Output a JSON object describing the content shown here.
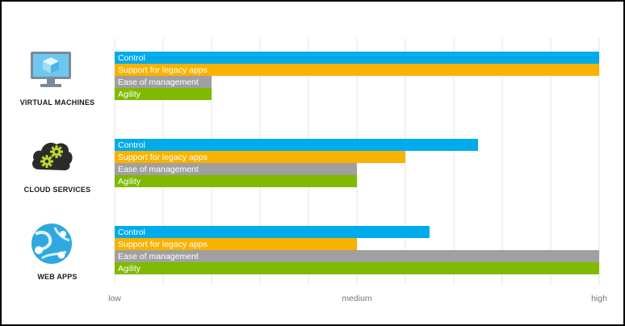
{
  "chart_data": {
    "type": "bar",
    "orientation": "horizontal",
    "x_ticks": [
      "low",
      "medium",
      "high"
    ],
    "xlim": [
      0,
      10
    ],
    "grid": true,
    "groups": [
      {
        "name": "VIRTUAL MACHINES",
        "icon": "virtual-machine-monitor-icon",
        "bars": [
          {
            "label": "Control",
            "value": 10,
            "color": "#00abec"
          },
          {
            "label": "Support for legacy apps",
            "value": 10,
            "color": "#fab200"
          },
          {
            "label": "Ease of management",
            "value": 2,
            "color": "#a0a0a0"
          },
          {
            "label": "Agility",
            "value": 2,
            "color": "#7fba00"
          }
        ]
      },
      {
        "name": "CLOUD SERVICES",
        "icon": "cloud-gears-icon",
        "bars": [
          {
            "label": "Control",
            "value": 7.5,
            "color": "#00abec"
          },
          {
            "label": "Support for legacy apps",
            "value": 6,
            "color": "#fab200"
          },
          {
            "label": "Ease of management",
            "value": 5,
            "color": "#a0a0a0"
          },
          {
            "label": "Agility",
            "value": 5,
            "color": "#7fba00"
          }
        ]
      },
      {
        "name": "WEB APPS",
        "icon": "web-apps-globe-icon",
        "bars": [
          {
            "label": "Control",
            "value": 6.5,
            "color": "#00abec"
          },
          {
            "label": "Support for legacy apps",
            "value": 5,
            "color": "#fab200"
          },
          {
            "label": "Ease of management",
            "value": 10,
            "color": "#a0a0a0"
          },
          {
            "label": "Agility",
            "value": 10,
            "color": "#7fba00"
          }
        ]
      }
    ]
  }
}
